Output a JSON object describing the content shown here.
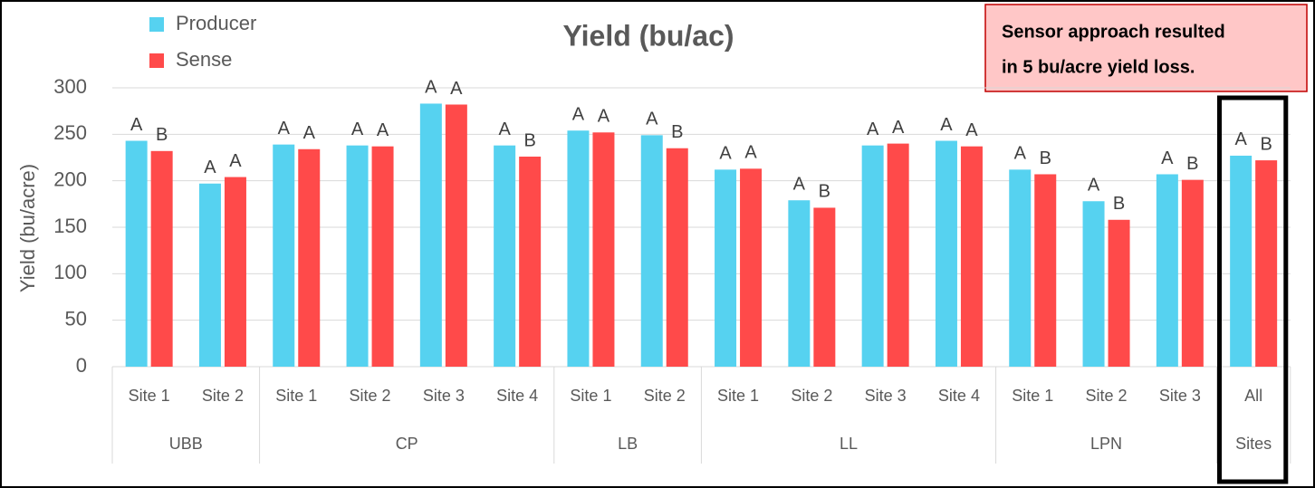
{
  "chart_data": {
    "type": "bar",
    "title": "Yield (bu/ac)",
    "y_label": "Yield (bu/acre)",
    "annotation": [
      "Sensor approach resulted",
      "in 5 bu/acre yield loss."
    ],
    "groups": [
      {
        "label": "UBB",
        "categories": [
          "Site 1",
          "Site 2"
        ]
      },
      {
        "label": "CP",
        "categories": [
          "Site 1",
          "Site 2",
          "Site 3",
          "Site 4"
        ]
      },
      {
        "label": "LB",
        "categories": [
          "Site 1",
          "Site 2"
        ]
      },
      {
        "label": "LL",
        "categories": [
          "Site 1",
          "Site 2",
          "Site 3",
          "Site 4"
        ]
      },
      {
        "label": "LPN",
        "categories": [
          "Site 1",
          "Site 2",
          "Site 3"
        ]
      },
      {
        "label": "Sites",
        "categories": [
          "All"
        ]
      }
    ],
    "series": [
      {
        "name": "Producer",
        "color": "#56d2f0",
        "values": [
          243,
          197,
          239,
          238,
          283,
          238,
          254,
          249,
          212,
          179,
          238,
          243,
          212,
          178,
          207,
          227
        ],
        "letters": [
          "A",
          "A",
          "A",
          "A",
          "A",
          "A",
          "A",
          "A",
          "A",
          "A",
          "A",
          "A",
          "A",
          "A",
          "A",
          "A"
        ]
      },
      {
        "name": "Sense",
        "color": "#ff4a4a",
        "values": [
          232,
          204,
          234,
          237,
          282,
          226,
          252,
          235,
          213,
          171,
          240,
          237,
          207,
          158,
          201,
          222
        ],
        "letters": [
          "B",
          "A",
          "A",
          "A",
          "A",
          "B",
          "A",
          "B",
          "A",
          "B",
          "A",
          "A",
          "B",
          "B",
          "B",
          "B"
        ]
      }
    ],
    "ylim": [
      0,
      300
    ],
    "yticks": [
      0,
      50,
      100,
      150,
      200,
      250,
      300
    ],
    "grid": true,
    "legend": "top-left"
  }
}
